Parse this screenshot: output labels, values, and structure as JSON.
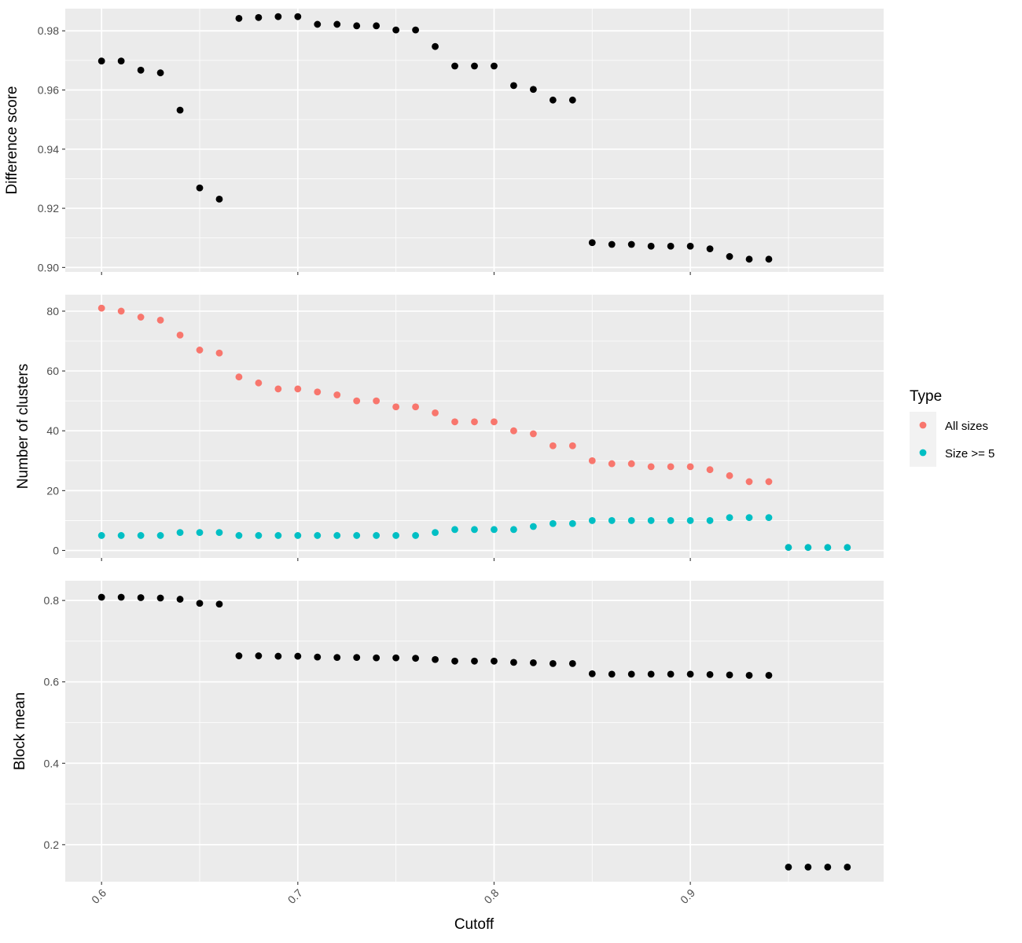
{
  "chart_data": [
    {
      "type": "scatter",
      "ylabel": "Difference score",
      "yticks": [
        "0.90",
        "0.92",
        "0.94",
        "0.96",
        "0.98"
      ],
      "ylim": [
        0.8985,
        0.9875
      ],
      "xlim": [
        0.5815,
        0.9985
      ],
      "grid": true,
      "series": [
        {
          "color": "#000000",
          "x": [
            0.6,
            0.61,
            0.62,
            0.63,
            0.64,
            0.65,
            0.66,
            0.67,
            0.68,
            0.69,
            0.7,
            0.71,
            0.72,
            0.73,
            0.74,
            0.75,
            0.76,
            0.77,
            0.78,
            0.79,
            0.8,
            0.81,
            0.82,
            0.83,
            0.84,
            0.85,
            0.86,
            0.87,
            0.88,
            0.89,
            0.9,
            0.91,
            0.92,
            0.93,
            0.94
          ],
          "y": [
            0.9698,
            0.9698,
            0.9667,
            0.9658,
            0.9532,
            0.9269,
            0.9231,
            0.9842,
            0.9845,
            0.9848,
            0.9848,
            0.9822,
            0.9822,
            0.9817,
            0.9817,
            0.9803,
            0.9803,
            0.9747,
            0.9681,
            0.9681,
            0.9681,
            0.9615,
            0.9602,
            0.9566,
            0.9566,
            0.9084,
            0.9078,
            0.9078,
            0.9072,
            0.9072,
            0.9072,
            0.9063,
            0.9037,
            0.9028,
            0.9028
          ]
        }
      ]
    },
    {
      "type": "scatter",
      "ylabel": "Number of clusters",
      "yticks": [
        "0",
        "20",
        "40",
        "60",
        "80"
      ],
      "ylim": [
        -2.5,
        85.5
      ],
      "xlim": [
        0.5815,
        0.9985
      ],
      "grid": true,
      "legend": {
        "title": "Type",
        "placement": "right"
      },
      "series": [
        {
          "name": "All sizes",
          "color": "#F8766D",
          "x": [
            0.6,
            0.61,
            0.62,
            0.63,
            0.64,
            0.65,
            0.66,
            0.67,
            0.68,
            0.69,
            0.7,
            0.71,
            0.72,
            0.73,
            0.74,
            0.75,
            0.76,
            0.77,
            0.78,
            0.79,
            0.8,
            0.81,
            0.82,
            0.83,
            0.84,
            0.85,
            0.86,
            0.87,
            0.88,
            0.89,
            0.9,
            0.91,
            0.92,
            0.93,
            0.94
          ],
          "y": [
            81,
            80,
            78,
            77,
            72,
            67,
            66,
            58,
            56,
            54,
            54,
            53,
            52,
            50,
            50,
            48,
            48,
            46,
            43,
            43,
            43,
            40,
            39,
            35,
            35,
            30,
            29,
            29,
            28,
            28,
            28,
            27,
            25,
            23,
            23
          ]
        },
        {
          "name": "Size >= 5",
          "color": "#00BFC4",
          "x": [
            0.6,
            0.61,
            0.62,
            0.63,
            0.64,
            0.65,
            0.66,
            0.67,
            0.68,
            0.69,
            0.7,
            0.71,
            0.72,
            0.73,
            0.74,
            0.75,
            0.76,
            0.77,
            0.78,
            0.79,
            0.8,
            0.81,
            0.82,
            0.83,
            0.84,
            0.85,
            0.86,
            0.87,
            0.88,
            0.89,
            0.9,
            0.91,
            0.92,
            0.93,
            0.94,
            0.95,
            0.96,
            0.97,
            0.98
          ],
          "y": [
            5,
            5,
            5,
            5,
            6,
            6,
            6,
            5,
            5,
            5,
            5,
            5,
            5,
            5,
            5,
            5,
            5,
            6,
            7,
            7,
            7,
            7,
            8,
            9,
            9,
            10,
            10,
            10,
            10,
            10,
            10,
            10,
            11,
            11,
            11,
            1,
            1,
            1,
            1
          ]
        }
      ]
    },
    {
      "type": "scatter",
      "ylabel": "Block mean",
      "yticks": [
        "0.2",
        "0.4",
        "0.6",
        "0.8"
      ],
      "ylim": [
        0.109,
        0.8485
      ],
      "xlim": [
        0.5815,
        0.9985
      ],
      "grid": true,
      "xlabel": "Cutoff",
      "xticks": [
        "0.6",
        "0.7",
        "0.8",
        "0.9"
      ],
      "series": [
        {
          "color": "#000000",
          "x": [
            0.6,
            0.61,
            0.62,
            0.63,
            0.64,
            0.65,
            0.66,
            0.67,
            0.68,
            0.69,
            0.7,
            0.71,
            0.72,
            0.73,
            0.74,
            0.75,
            0.76,
            0.77,
            0.78,
            0.79,
            0.8,
            0.81,
            0.82,
            0.83,
            0.84,
            0.85,
            0.86,
            0.87,
            0.88,
            0.89,
            0.9,
            0.91,
            0.92,
            0.93,
            0.94,
            0.95,
            0.96,
            0.97,
            0.98
          ],
          "y": [
            0.808,
            0.808,
            0.807,
            0.806,
            0.803,
            0.793,
            0.791,
            0.664,
            0.664,
            0.663,
            0.663,
            0.661,
            0.66,
            0.66,
            0.659,
            0.659,
            0.658,
            0.655,
            0.651,
            0.651,
            0.651,
            0.648,
            0.647,
            0.645,
            0.645,
            0.62,
            0.619,
            0.619,
            0.619,
            0.619,
            0.619,
            0.618,
            0.617,
            0.616,
            0.616,
            0.145,
            0.145,
            0.145,
            0.145
          ]
        }
      ]
    }
  ]
}
